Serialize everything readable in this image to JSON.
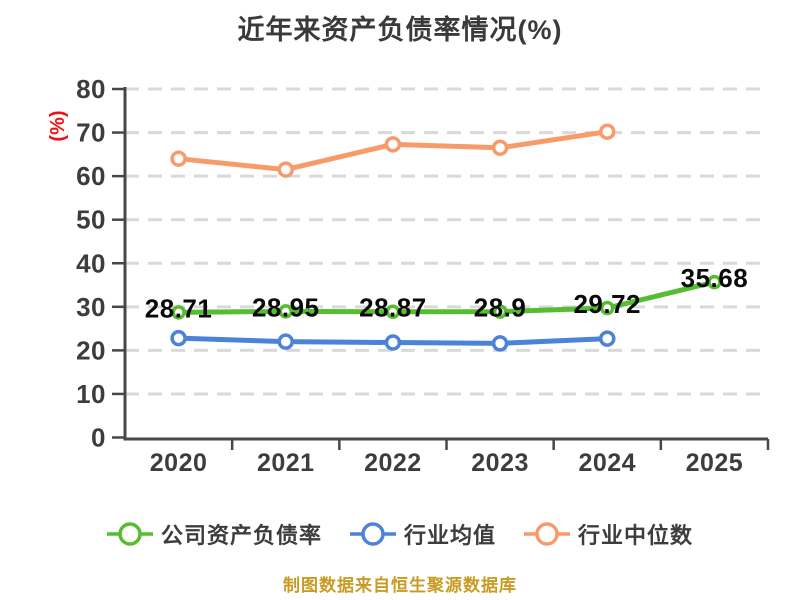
{
  "title": "近年来资产负债率情况(%)",
  "footer_note": "制图数据来自恒生聚源数据库",
  "colors": {
    "title_text": "#3a3a3a",
    "axis": "#474747",
    "tick_label": "#3d3d3d",
    "gridline": "#d9d9d9",
    "value_label": "#0a0a0a",
    "ylabel_red": "#ee1111",
    "footer_gold": "#c89b25",
    "series_green": "#56bd31",
    "series_blue": "#4d82d9",
    "series_orange": "#f89b6b",
    "background": "#ffffff"
  },
  "chart_data": {
    "type": "line",
    "title": "近年来资产负债率情况(%)",
    "xlabel": "",
    "ylabel": "(%)",
    "x_categories": [
      "2020",
      "2021",
      "2022",
      "2023",
      "2024",
      "2025"
    ],
    "ylim": [
      0,
      80
    ],
    "yticks": [
      0,
      10,
      20,
      30,
      40,
      50,
      60,
      70,
      80
    ],
    "grid": "horizontal-dashed",
    "legend_position": "bottom",
    "series": [
      {
        "name": "公司资产负债率",
        "color": "#56bd31",
        "values": [
          28.71,
          28.95,
          28.87,
          28.9,
          29.72,
          35.68
        ],
        "point_labels": [
          "28.71",
          "28.95",
          "28.87",
          "28.9",
          "29.72",
          "35.68"
        ],
        "show_labels": true,
        "marker": "circle-white-fill"
      },
      {
        "name": "行业均值",
        "color": "#4d82d9",
        "values": [
          22.8,
          22.0,
          21.8,
          21.6,
          22.7,
          null
        ],
        "point_labels": [],
        "show_labels": false,
        "marker": "circle-white-fill"
      },
      {
        "name": "行业中位数",
        "color": "#f89b6b",
        "values": [
          64,
          61.5,
          67.3,
          66.5,
          70.2,
          null
        ],
        "point_labels": [],
        "show_labels": false,
        "marker": "circle-white-fill"
      }
    ]
  }
}
